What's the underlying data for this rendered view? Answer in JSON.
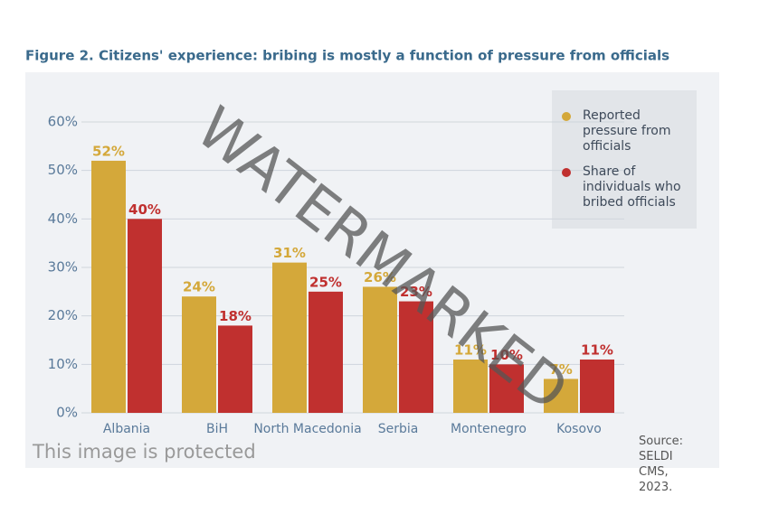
{
  "chart_data": {
    "type": "bar",
    "title": "Figure 2.  Citizens' experience: bribing is mostly a function of pressure from officials",
    "categories": [
      "Albania",
      "BiH",
      "North Macedonia",
      "Serbia",
      "Montenegro",
      "Kosovo"
    ],
    "series": [
      {
        "name": "Reported pressure from officials",
        "color": "#d4a83a",
        "values": [
          52,
          24,
          31,
          26,
          11,
          7
        ],
        "value_labels": [
          "52%",
          "24%",
          "31%",
          "26%",
          "11%",
          "7%"
        ]
      },
      {
        "name": "Share of individuals who bribed officials",
        "color": "#c0302f",
        "values": [
          40,
          18,
          25,
          23,
          10,
          11
        ],
        "value_labels": [
          "40%",
          "18%",
          "25%",
          "23%",
          "10%",
          "11%"
        ]
      }
    ],
    "ylim": [
      0,
      60
    ],
    "yticks": [
      {
        "value": 0,
        "label": "0%"
      },
      {
        "value": 10,
        "label": "10%"
      },
      {
        "value": 20,
        "label": "20%"
      },
      {
        "value": 30,
        "label": "30%"
      },
      {
        "value": 40,
        "label": "40%"
      },
      {
        "value": 50,
        "label": "50%"
      },
      {
        "value": 60,
        "label": "60%"
      }
    ],
    "grid": true,
    "legend": "upper right",
    "source": "Source: SELDI CMS, 2023.",
    "watermark": "WATERMARKED",
    "protection_note": "This image is protected"
  }
}
